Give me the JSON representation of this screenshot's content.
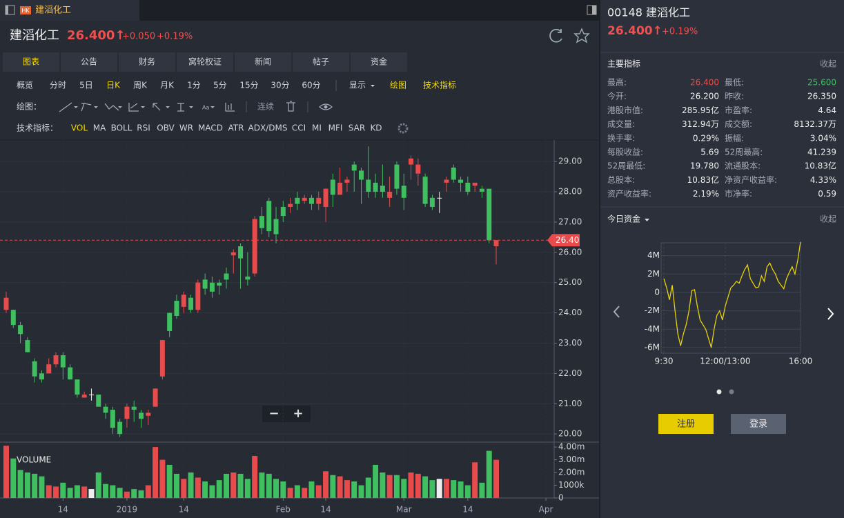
{
  "tab": {
    "badge": "HK",
    "title": "建滔化工"
  },
  "header": {
    "name": "建滔化工",
    "price": "26.400↑",
    "change": "+0.050",
    "change_pct": "+0.19%"
  },
  "tabs": [
    "图表",
    "公告",
    "财务",
    "窝轮权证",
    "新闻",
    "帖子",
    "资金"
  ],
  "active_tab": 0,
  "periods": [
    "概览",
    "分时",
    "5日",
    "日K",
    "周K",
    "月K",
    "1分",
    "5分",
    "15分",
    "30分",
    "60分"
  ],
  "active_period": 3,
  "tools": [
    {
      "text": "显示",
      "active": false
    },
    {
      "text": "绘图",
      "active": true
    },
    {
      "text": "技术指标",
      "active": true
    }
  ],
  "draw_bar": {
    "label": "绘图：",
    "continuous": "连续"
  },
  "indicators": {
    "label": "技术指标：",
    "items": [
      "VOL",
      "MA",
      "BOLL",
      "RSI",
      "OBV",
      "WR",
      "MACD",
      "ATR",
      "ADX/DMS",
      "CCI",
      "MI",
      "MFI",
      "SAR",
      "KD"
    ],
    "active": 0
  },
  "zoom": {
    "minus": "−",
    "plus": "+"
  },
  "chart_data": [
    {
      "type": "candlestick",
      "categories": [
        null,
        null,
        null,
        null,
        null,
        null,
        null,
        null,
        "14",
        null,
        null,
        null,
        null,
        null,
        null,
        null,
        null,
        "2019",
        null,
        null,
        null,
        null,
        null,
        null,
        null,
        "14",
        null,
        null,
        null,
        null,
        null,
        null,
        null,
        null,
        null,
        null,
        null,
        null,
        null,
        "Feb",
        null,
        null,
        null,
        null,
        null,
        "14",
        null,
        null,
        null,
        null,
        null,
        null,
        null,
        null,
        null,
        null,
        "Mar",
        null,
        null,
        null,
        null,
        null,
        null,
        null,
        null,
        "14",
        null,
        null,
        null,
        null,
        null,
        null,
        null,
        null,
        null,
        null,
        "Apr"
      ],
      "open": [
        24.1,
        24.1,
        23.6,
        23.1,
        22.4,
        22.0,
        22.0,
        22.3,
        22.6,
        22.2,
        21.8,
        21.2,
        21.3,
        21.3,
        20.9,
        20.8,
        20.4,
        20.5,
        20.9,
        20.7,
        20.6,
        20.9,
        21.9,
        24.0,
        24.4,
        24.2,
        24.5,
        24.1,
        25.1,
        25.0,
        25.0,
        25.3,
        25.9,
        26.2,
        25.2,
        25.3,
        27.2,
        27.7,
        27.1,
        27.5,
        27.5,
        27.8,
        27.7,
        27.8,
        27.6,
        27.5,
        28.4,
        27.9,
        28.3,
        28.9,
        28.7,
        28.4,
        28.3,
        28.2,
        27.8,
        28.9,
        28.2,
        28.9,
        28.6,
        28.5,
        27.8,
        27.8,
        28.3,
        28.8,
        28.4,
        28.3,
        28.2,
        28.1,
        28.1,
        26.2,
        null,
        null,
        null,
        null,
        null,
        null,
        null
      ],
      "high": [
        24.7,
        24.1,
        23.7,
        23.2,
        22.5,
        22.1,
        22.5,
        22.7,
        22.7,
        22.3,
        21.8,
        21.4,
        21.5,
        21.3,
        21.0,
        20.9,
        20.5,
        21.0,
        21.1,
        20.8,
        20.8,
        21.5,
        23.1,
        24.0,
        24.6,
        24.7,
        24.6,
        25.1,
        25.3,
        25.2,
        25.1,
        25.5,
        26.1,
        26.3,
        26.0,
        27.2,
        27.5,
        27.8,
        27.5,
        27.7,
        27.8,
        28.0,
        27.9,
        27.9,
        28.0,
        28.1,
        28.6,
        28.8,
        28.5,
        29.0,
        28.8,
        29.5,
        28.6,
        28.9,
        28.5,
        29.0,
        28.6,
        29.2,
        29.1,
        28.6,
        27.9,
        28.0,
        28.5,
        28.9,
        28.5,
        28.5,
        28.3,
        28.2,
        28.1,
        26.4,
        null,
        null,
        null,
        null,
        null,
        null,
        null
      ],
      "low": [
        24.0,
        23.5,
        23.0,
        22.7,
        21.7,
        21.7,
        22.0,
        22.2,
        21.8,
        21.8,
        21.2,
        21.2,
        21.1,
        20.9,
        20.5,
        20.0,
        19.9,
        20.2,
        20.4,
        20.2,
        20.3,
        20.9,
        21.8,
        23.2,
        23.8,
        24.0,
        24.0,
        24.0,
        24.6,
        24.5,
        24.6,
        24.8,
        25.3,
        24.8,
        24.9,
        25.2,
        26.6,
        26.5,
        26.3,
        27.0,
        27.3,
        27.4,
        27.6,
        27.4,
        27.4,
        27.0,
        27.5,
        27.9,
        28.0,
        28.0,
        27.6,
        27.8,
        27.8,
        27.8,
        27.5,
        27.9,
        27.4,
        28.4,
        28.2,
        27.5,
        27.4,
        27.3,
        28.0,
        28.3,
        28.0,
        27.9,
        28.0,
        27.8,
        26.3,
        25.6,
        null,
        null,
        null,
        null,
        null,
        null,
        null
      ],
      "close": [
        24.5,
        23.6,
        23.3,
        22.7,
        21.9,
        21.8,
        22.3,
        22.6,
        22.2,
        21.8,
        21.3,
        21.3,
        21.3,
        20.9,
        20.7,
        20.2,
        20.0,
        20.9,
        20.8,
        20.5,
        20.7,
        21.5,
        23.1,
        23.4,
        23.9,
        24.6,
        24.1,
        25.0,
        24.8,
        24.7,
        24.9,
        25.1,
        26.0,
        25.8,
        25.1,
        27.1,
        26.8,
        26.7,
        26.6,
        27.2,
        27.6,
        27.6,
        27.8,
        27.6,
        27.8,
        28.1,
        27.9,
        28.3,
        28.4,
        28.7,
        28.4,
        28.0,
        28.0,
        28.0,
        28.0,
        28.1,
        27.8,
        29.1,
        28.9,
        27.6,
        27.5,
        27.8,
        28.4,
        28.4,
        28.3,
        28.0,
        28.3,
        28.0,
        26.4,
        26.4,
        null,
        null,
        null,
        null,
        null,
        null,
        null
      ],
      "up_color": "#e84b4b",
      "down_color": "#3fbf5f",
      "flat_color": "#eeeeee",
      "ylim": [
        19.73,
        29.71
      ],
      "yticks": [
        {
          "value": 20,
          "label": "20.00"
        },
        {
          "value": 21,
          "label": "21.00"
        },
        {
          "value": 22,
          "label": "22.00"
        },
        {
          "value": 23,
          "label": "23.00"
        },
        {
          "value": 24,
          "label": "24.00"
        },
        {
          "value": 25,
          "label": "25.00"
        },
        {
          "value": 26,
          "label": "26.00"
        },
        {
          "value": 27,
          "label": "27.00"
        },
        {
          "value": 28,
          "label": "28.00"
        },
        {
          "value": 29,
          "label": "29.00"
        }
      ],
      "last_price": {
        "value": 26.4,
        "label": "26.40"
      },
      "grid": true
    },
    {
      "type": "volume",
      "title": "VOLUME",
      "values": [
        4.1,
        3.1,
        2.2,
        2.0,
        1.9,
        1.7,
        1.0,
        0.9,
        1.2,
        0.8,
        1.0,
        0.9,
        0.7,
        2.0,
        1.1,
        1.0,
        0.8,
        0.5,
        0.7,
        0.6,
        1.0,
        4.0,
        3.0,
        2.6,
        1.9,
        1.5,
        2.0,
        1.6,
        1.3,
        1.0,
        1.4,
        1.9,
        2.0,
        1.9,
        1.5,
        3.3,
        2.0,
        1.9,
        1.5,
        1.3,
        0.8,
        1.0,
        0.8,
        1.3,
        1.0,
        2.1,
        1.8,
        1.7,
        1.4,
        1.3,
        1.0,
        1.6,
        2.6,
        2.0,
        1.8,
        1.8,
        1.5,
        2.0,
        1.9,
        1.7,
        1.4,
        1.5,
        1.5,
        1.4,
        1.3,
        1.0,
        2.8,
        1.2,
        3.7,
        3.0,
        null,
        null,
        null,
        null,
        null,
        null,
        null
      ],
      "ylim": [
        0,
        4.33
      ],
      "yticks": [
        0,
        {
          "value": 1,
          "label": "1000k"
        },
        {
          "value": 2,
          "label": "2.00m"
        },
        {
          "value": 3,
          "label": "3.00m"
        },
        {
          "value": 4,
          "label": "4.00m"
        }
      ]
    },
    {
      "type": "line",
      "categories": [
        "9:30",
        null,
        null,
        null,
        null,
        null,
        null,
        null,
        null,
        null,
        null,
        null,
        null,
        null,
        null,
        null,
        null,
        null,
        null,
        null,
        null,
        null,
        "12:00/13:00",
        null,
        null,
        null,
        null,
        null,
        null,
        null,
        null,
        null,
        null,
        null,
        null,
        null,
        null,
        null,
        null,
        null,
        null,
        null,
        null,
        null,
        null,
        null,
        null,
        null,
        null,
        "16:00"
      ],
      "values": [
        1.5,
        0.5,
        -0.8,
        0.8,
        -2,
        -4.5,
        -5.8,
        -4.5,
        -3.5,
        -2,
        0.2,
        0.3,
        -1.5,
        -3,
        -3.5,
        -4,
        -5,
        -6,
        -4,
        -2.5,
        -2,
        -3,
        -1.5,
        -0.5,
        0.5,
        0.8,
        1.2,
        1.0,
        1.8,
        2.5,
        3.0,
        1.5,
        1.0,
        0.5,
        0.6,
        1.8,
        1.2,
        2.8,
        3.2,
        2.5,
        2.0,
        1.2,
        0.8,
        0.4,
        1.5,
        2.2,
        2.8,
        2.0,
        3.5,
        5.5
      ],
      "color": "#e8d20a",
      "ylim": [
        -6.6,
        5.4
      ],
      "yticks": [
        {
          "value": 4,
          "label": "4M"
        },
        {
          "value": 2,
          "label": "2M"
        },
        0,
        {
          "value": -2,
          "label": "-2M"
        },
        {
          "value": -4,
          "label": "-4M"
        },
        {
          "value": -6,
          "label": "-6M"
        }
      ],
      "grid": true
    }
  ],
  "side": {
    "code_name": "00148 建滔化工",
    "price": "26.400↑",
    "change_pct": "+0.19%",
    "metrics_title": "主要指标",
    "collapse": "收起",
    "metrics": [
      {
        "label": "最高:",
        "value": "26.400",
        "color": "#e84b4b"
      },
      {
        "label": "最低:",
        "value": "25.600",
        "color": "#3fbf5f"
      },
      {
        "label": "今开:",
        "value": "26.200"
      },
      {
        "label": "昨收:",
        "value": "26.350"
      },
      {
        "label": "港股市值:",
        "value": "285.95亿"
      },
      {
        "label": "市盈率:",
        "value": "4.64"
      },
      {
        "label": "成交量:",
        "value": "312.94万"
      },
      {
        "label": "成交额:",
        "value": "8132.37万"
      },
      {
        "label": "换手率:",
        "value": "0.29%"
      },
      {
        "label": "振幅:",
        "value": "3.04%"
      },
      {
        "label": "每股收益:",
        "value": "5.69"
      },
      {
        "label": "52周最高:",
        "value": "41.239"
      },
      {
        "label": "52周最低:",
        "value": "19.780"
      },
      {
        "label": "流通股本:",
        "value": "10.83亿"
      },
      {
        "label": "总股本:",
        "value": "10.83亿"
      },
      {
        "label": "净资产收益率:",
        "value": "4.33%"
      },
      {
        "label": "资产收益率:",
        "value": "2.19%"
      },
      {
        "label": "市净率:",
        "value": "0.59"
      }
    ],
    "fund_title": "今日资金",
    "fund_collapse": "收起",
    "register": "注册",
    "login": "登录"
  }
}
